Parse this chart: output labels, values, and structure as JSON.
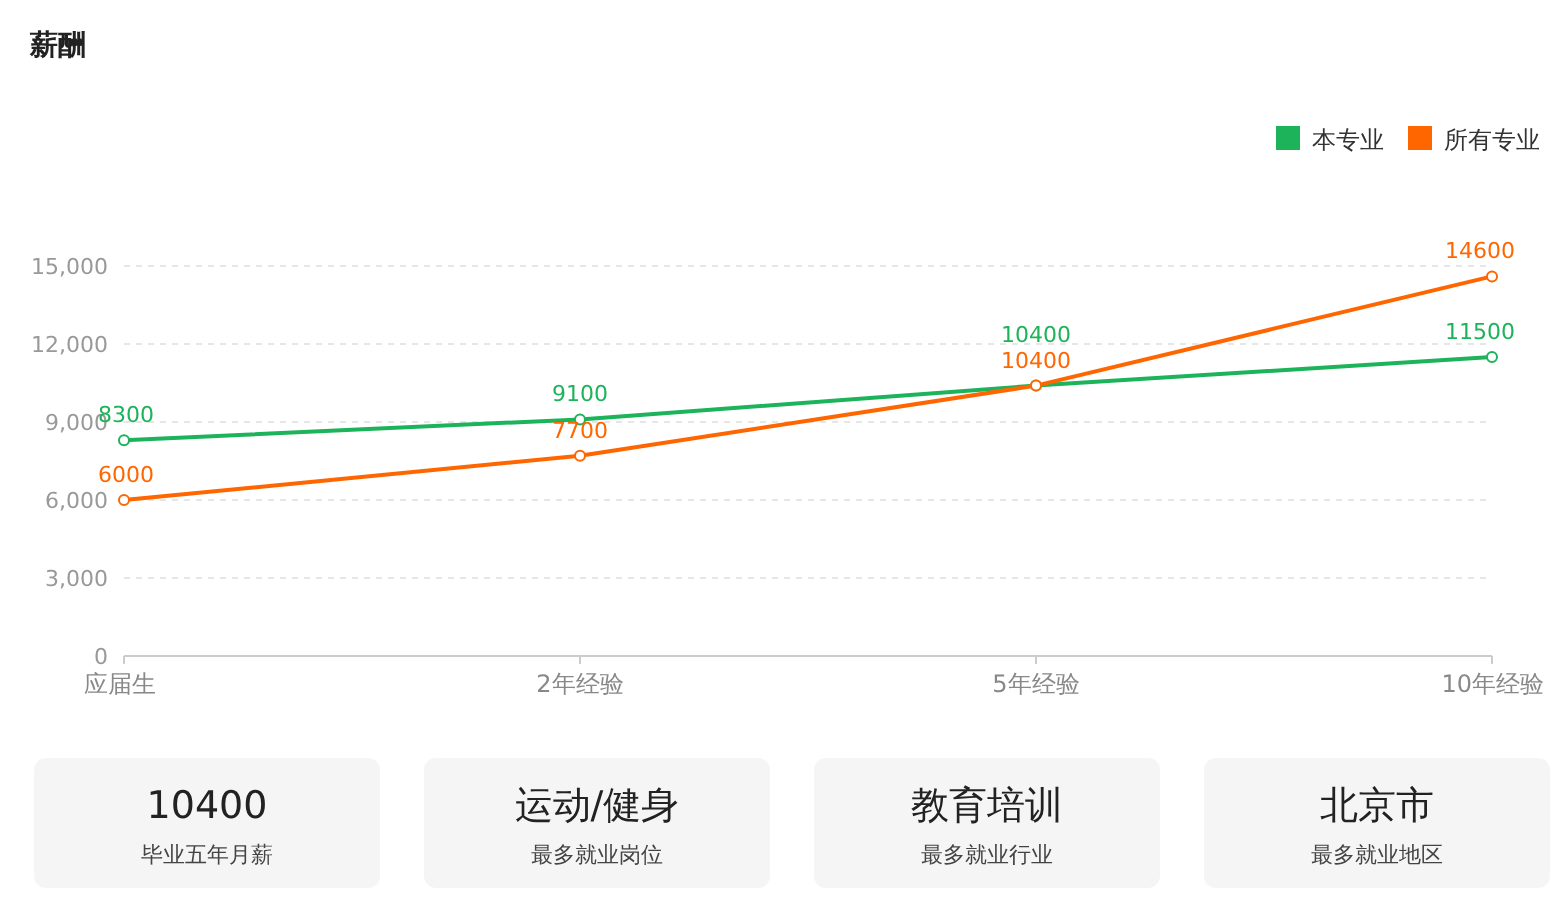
{
  "chart_data": [
    {
      "type": "line",
      "title": "薪酬",
      "categories": [
        "应届生",
        "2年经验",
        "5年经验",
        "10年经验"
      ],
      "series": [
        {
          "name": "本专业",
          "color": "#1db35a",
          "values": [
            8300,
            9100,
            10400,
            11500
          ]
        },
        {
          "name": "所有专业",
          "color": "#ff6600",
          "values": [
            6000,
            7700,
            10400,
            14600
          ]
        }
      ],
      "ylim": [
        0,
        15000
      ],
      "yticks": [
        {
          "value": 0,
          "label": "0"
        },
        {
          "value": 3000,
          "label": "3,000"
        },
        {
          "value": 6000,
          "label": "6,000"
        },
        {
          "value": 9000,
          "label": "9,000"
        },
        {
          "value": 12000,
          "label": "12,000"
        },
        {
          "value": 15000,
          "label": "15,000"
        }
      ],
      "grid": "y",
      "legend": "top right",
      "marker": "circle",
      "data_labels": true
    },
    {
      "type": "other",
      "annotations": [
        "10400",
        "毕业五年月薪",
        "运动/健身",
        "最多就业岗位",
        "教育培训",
        "最多就业行业",
        "北京市",
        "最多就业地区"
      ]
    }
  ]
}
